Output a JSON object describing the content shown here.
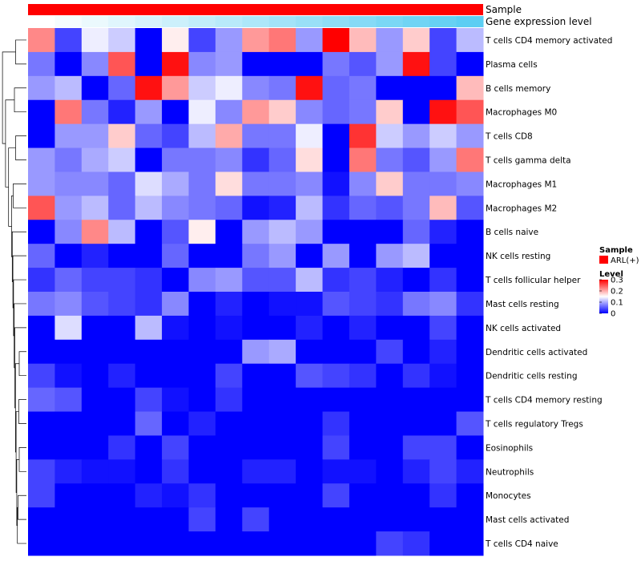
{
  "chart_data": {
    "type": "heatmap",
    "annotations": {
      "sample_label": "Sample",
      "expression_label": "Gene expression level",
      "sample_color": "#ff0000",
      "expression_low_color": "#ffffff",
      "expression_high_color": "#55ccf2"
    },
    "rows": [
      "T cells CD4 memory activated",
      "Plasma cells",
      "B cells memory",
      "Macrophages M0",
      "T cells CD8",
      "T cells gamma delta",
      "Macrophages M1",
      "Macrophages M2",
      "B cells naive",
      "NK cells resting",
      "T cells follicular helper",
      "Mast cells resting",
      "NK cells activated",
      "Dendritic cells activated",
      "Dendritic cells resting",
      "T cells CD4 memory resting",
      "T cells regulatory  Tregs",
      "Eosinophils",
      "Neutrophils",
      "Monocytes",
      "Mast cells activated",
      "T cells CD4 naive"
    ],
    "values": [
      [
        0.22,
        0.04,
        0.14,
        0.12,
        0.0,
        0.16,
        0.04,
        0.09,
        0.21,
        0.23,
        0.09,
        0.3,
        0.19,
        0.09,
        0.18,
        0.04,
        0.11
      ],
      [
        0.07,
        0.0,
        0.08,
        0.25,
        0.0,
        0.29,
        0.08,
        0.09,
        0.0,
        0.0,
        0.0,
        0.07,
        0.05,
        0.09,
        0.29,
        0.04,
        0.0
      ],
      [
        0.09,
        0.11,
        0.0,
        0.06,
        0.29,
        0.21,
        0.12,
        0.14,
        0.08,
        0.07,
        0.29,
        0.06,
        0.07,
        0.0,
        0.0,
        0.0,
        0.19
      ],
      [
        0.0,
        0.23,
        0.07,
        0.02,
        0.09,
        0.0,
        0.14,
        0.08,
        0.21,
        0.18,
        0.08,
        0.06,
        0.07,
        0.18,
        0.0,
        0.29,
        0.25
      ],
      [
        0.0,
        0.09,
        0.09,
        0.18,
        0.06,
        0.04,
        0.11,
        0.2,
        0.07,
        0.07,
        0.14,
        0.0,
        0.27,
        0.12,
        0.09,
        0.12,
        0.09
      ],
      [
        0.09,
        0.07,
        0.1,
        0.12,
        0.0,
        0.07,
        0.07,
        0.08,
        0.03,
        0.06,
        0.17,
        0.0,
        0.23,
        0.07,
        0.05,
        0.09,
        0.23
      ],
      [
        0.09,
        0.08,
        0.08,
        0.06,
        0.13,
        0.1,
        0.07,
        0.17,
        0.07,
        0.07,
        0.08,
        0.01,
        0.08,
        0.18,
        0.07,
        0.07,
        0.08
      ],
      [
        0.25,
        0.09,
        0.11,
        0.06,
        0.11,
        0.08,
        0.07,
        0.06,
        0.01,
        0.02,
        0.11,
        0.03,
        0.06,
        0.05,
        0.07,
        0.19,
        0.05
      ],
      [
        0.0,
        0.08,
        0.22,
        0.11,
        0.0,
        0.05,
        0.16,
        0.0,
        0.09,
        0.11,
        0.09,
        0.0,
        0.0,
        0.0,
        0.06,
        0.02,
        0.0
      ],
      [
        0.06,
        0.0,
        0.02,
        0.0,
        0.0,
        0.06,
        0.0,
        0.0,
        0.07,
        0.09,
        0.0,
        0.09,
        0.0,
        0.09,
        0.11,
        0.0,
        0.0
      ],
      [
        0.03,
        0.06,
        0.04,
        0.04,
        0.03,
        0.0,
        0.08,
        0.09,
        0.05,
        0.05,
        0.11,
        0.03,
        0.04,
        0.02,
        0.0,
        0.03,
        0.0
      ],
      [
        0.07,
        0.08,
        0.05,
        0.04,
        0.03,
        0.08,
        0.0,
        0.02,
        0.0,
        0.01,
        0.01,
        0.05,
        0.04,
        0.03,
        0.07,
        0.08,
        0.03
      ],
      [
        0.0,
        0.13,
        0.0,
        0.0,
        0.11,
        0.01,
        0.0,
        0.01,
        0.0,
        0.0,
        0.02,
        0.0,
        0.02,
        0.0,
        0.0,
        0.04,
        0.0
      ],
      [
        0.0,
        0.0,
        0.0,
        0.0,
        0.0,
        0.0,
        0.0,
        0.0,
        0.09,
        0.1,
        0.0,
        0.0,
        0.0,
        0.04,
        0.0,
        0.02,
        0.0
      ],
      [
        0.04,
        0.01,
        0.0,
        0.02,
        0.0,
        0.0,
        0.0,
        0.04,
        0.0,
        0.0,
        0.05,
        0.04,
        0.03,
        0.0,
        0.03,
        0.01,
        0.0
      ],
      [
        0.06,
        0.05,
        0.0,
        0.0,
        0.04,
        0.01,
        0.0,
        0.03,
        0.0,
        0.0,
        0.0,
        0.0,
        0.0,
        0.0,
        0.0,
        0.0,
        0.0
      ],
      [
        0.0,
        0.0,
        0.0,
        0.0,
        0.06,
        0.0,
        0.02,
        0.0,
        0.0,
        0.0,
        0.0,
        0.03,
        0.0,
        0.0,
        0.0,
        0.0,
        0.05
      ],
      [
        0.0,
        0.0,
        0.0,
        0.03,
        0.0,
        0.04,
        0.0,
        0.0,
        0.0,
        0.0,
        0.0,
        0.04,
        0.0,
        0.0,
        0.04,
        0.04,
        0.0
      ],
      [
        0.04,
        0.02,
        0.01,
        0.01,
        0.0,
        0.03,
        0.0,
        0.0,
        0.02,
        0.02,
        0.0,
        0.01,
        0.01,
        0.0,
        0.02,
        0.04,
        0.02
      ],
      [
        0.04,
        0.0,
        0.0,
        0.0,
        0.02,
        0.01,
        0.03,
        0.0,
        0.0,
        0.0,
        0.0,
        0.04,
        0.0,
        0.0,
        0.0,
        0.03,
        0.0
      ],
      [
        0.0,
        0.0,
        0.0,
        0.0,
        0.0,
        0.0,
        0.04,
        0.0,
        0.04,
        0.0,
        0.0,
        0.0,
        0.0,
        0.0,
        0.0,
        0.0,
        0.0
      ],
      [
        0.0,
        0.0,
        0.0,
        0.0,
        0.0,
        0.0,
        0.0,
        0.0,
        0.0,
        0.0,
        0.0,
        0.0,
        0.0,
        0.04,
        0.03,
        0.0,
        0.0
      ]
    ],
    "expression_levels": [
      0.0,
      0.06,
      0.12,
      0.18,
      0.24,
      0.3,
      0.36,
      0.42,
      0.48,
      0.54,
      0.6,
      0.66,
      0.72,
      0.78,
      0.84,
      0.9,
      0.96
    ],
    "color_scale": {
      "min": 0,
      "max": 0.3,
      "low": "#0000ff",
      "mid": "#ffffff",
      "high": "#ff0000",
      "midpoint": 0.15
    },
    "dendrogram": {
      "merges": [
        [
          0,
          1,
          0.45
        ],
        [
          2,
          3,
          0.5
        ],
        [
          4,
          5,
          0.45
        ],
        [
          6,
          7,
          0.55
        ],
        [
          13,
          14,
          0.3
        ],
        [
          15,
          16,
          0.32
        ],
        [
          17,
          18,
          0.3
        ],
        [
          19,
          20,
          0.35
        ]
      ]
    },
    "legend": {
      "sample_title": "Sample",
      "sample_entry": "ARL(+)",
      "level_title": "Level",
      "ticks": [
        "0.3",
        "0.2",
        "0.1",
        "0"
      ],
      "tick_values": [
        0.3,
        0.2,
        0.1,
        0
      ]
    }
  }
}
